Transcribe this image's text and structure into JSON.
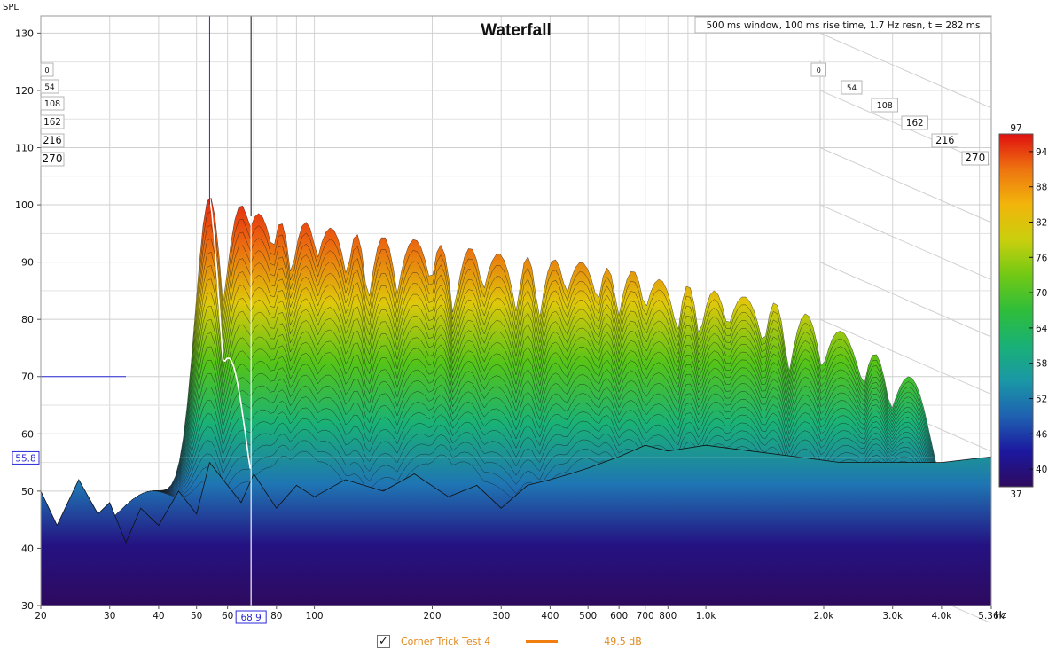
{
  "chart_data": {
    "type": "waterfall",
    "title": "Waterfall",
    "info": "500 ms window, 100 ms rise time,  1.7 Hz resn, t = 282 ms",
    "ylabel": "SPL",
    "xunit": "Hz",
    "ylim": [
      30,
      133
    ],
    "yticks": [
      30,
      40,
      50,
      60,
      70,
      80,
      90,
      100,
      110,
      120,
      130
    ],
    "x_scale": "log",
    "xlim": [
      20,
      5360
    ],
    "xticks": [
      {
        "v": 20,
        "t": "20"
      },
      {
        "v": 30,
        "t": "30"
      },
      {
        "v": 40,
        "t": "40"
      },
      {
        "v": 50,
        "t": "50"
      },
      {
        "v": 60,
        "t": "60"
      },
      {
        "v": 80,
        "t": "80"
      },
      {
        "v": 100,
        "t": "100"
      },
      {
        "v": 200,
        "t": "200"
      },
      {
        "v": 300,
        "t": "300"
      },
      {
        "v": 400,
        "t": "400"
      },
      {
        "v": 500,
        "t": "500"
      },
      {
        "v": 600,
        "t": "600"
      },
      {
        "v": 700,
        "t": "700"
      },
      {
        "v": 800,
        "t": "800"
      },
      {
        "v": 1000,
        "t": "1.0k"
      },
      {
        "v": 2000,
        "t": "2.0k"
      },
      {
        "v": 3000,
        "t": "3.0k"
      },
      {
        "v": 4000,
        "t": "4.0k"
      },
      {
        "v": 5360,
        "t": "5.36k"
      }
    ],
    "time_labels_ms": [
      "0",
      "54",
      "108",
      "162",
      "216",
      "270"
    ],
    "cursor": {
      "freq_label": "68.9",
      "spl_label": "55.8",
      "marker_spl": 70,
      "marker_freq": 54
    },
    "colorbar": {
      "min": 37,
      "max": 97,
      "ticks": [
        40,
        46,
        52,
        58,
        64,
        70,
        76,
        82,
        88,
        94
      ],
      "colors": [
        "#2e0a5e",
        "#1a1aa6",
        "#1f73b4",
        "#18a7a0",
        "#19b85a",
        "#44c21a",
        "#b8d40e",
        "#f2c20a",
        "#f07f10",
        "#e01010"
      ]
    },
    "waterfall_peak_freqs": [
      54,
      65,
      72,
      82,
      95,
      110,
      128,
      150,
      180,
      210,
      250,
      295,
      350,
      410,
      480,
      560,
      650,
      760,
      900,
      1050,
      1250,
      1500,
      1800,
      2200,
      2700,
      3300
    ],
    "waterfall_peak_spl": [
      101.5,
      100,
      98.5,
      97,
      97,
      96,
      95,
      94.5,
      94,
      93,
      92.5,
      91.5,
      91,
      90.5,
      90,
      89,
      88.5,
      87,
      86,
      85,
      84,
      83,
      81,
      78,
      74,
      70
    ],
    "front_slice_points": [
      [
        20,
        50
      ],
      [
        22,
        44
      ],
      [
        25,
        52
      ],
      [
        28,
        46
      ],
      [
        30,
        48
      ],
      [
        33,
        41
      ],
      [
        36,
        47
      ],
      [
        40,
        44
      ],
      [
        45,
        50
      ],
      [
        50,
        46
      ],
      [
        54,
        55
      ],
      [
        60,
        51
      ],
      [
        65,
        48
      ],
      [
        70,
        53
      ],
      [
        80,
        47
      ],
      [
        90,
        51
      ],
      [
        100,
        49
      ],
      [
        120,
        52
      ],
      [
        150,
        50
      ],
      [
        180,
        53
      ],
      [
        220,
        49
      ],
      [
        260,
        51
      ],
      [
        300,
        47
      ],
      [
        350,
        51
      ],
      [
        400,
        52
      ],
      [
        450,
        53
      ],
      [
        500,
        54
      ],
      [
        600,
        56
      ],
      [
        700,
        58
      ],
      [
        800,
        57
      ],
      [
        1000,
        58
      ],
      [
        1300,
        57
      ],
      [
        1700,
        56
      ],
      [
        2200,
        55
      ],
      [
        3000,
        55
      ],
      [
        4000,
        55
      ],
      [
        5360,
        56
      ]
    ]
  },
  "legend": {
    "series_name": "Corner Trick Test 4",
    "check_glyph": "✓",
    "value": "49.5 dB",
    "color": "#f07f10"
  }
}
